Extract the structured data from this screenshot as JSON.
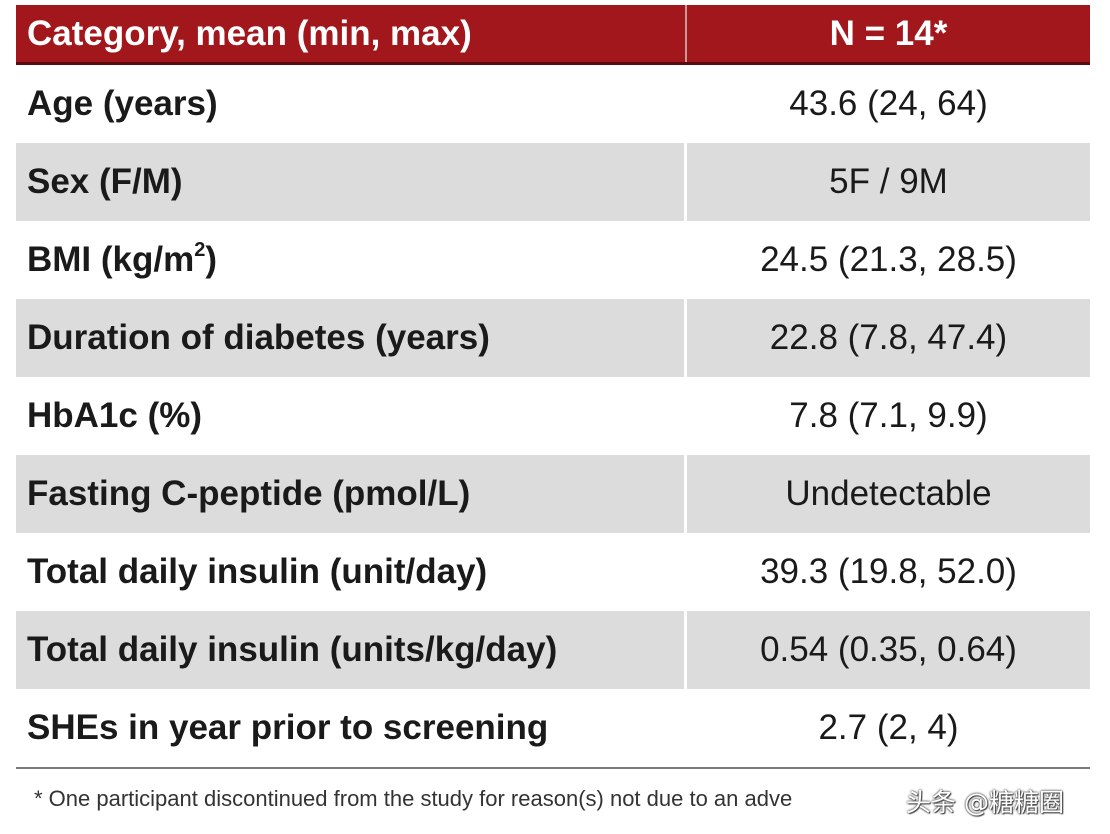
{
  "table": {
    "header": {
      "category": "Category, mean (min, max)",
      "value": "N = 14*"
    },
    "rows": [
      {
        "label": "Age (years)",
        "value": "43.6 (24, 64)"
      },
      {
        "label": "Sex (F/M)",
        "value": "5F / 9M"
      },
      {
        "label_prefix": "BMI (kg/m",
        "label_sup": "2",
        "label_suffix": ")",
        "value": "24.5 (21.3, 28.5)"
      },
      {
        "label": "Duration of diabetes (years)",
        "value": "22.8 (7.8, 47.4)"
      },
      {
        "label": "HbA1c (%)",
        "value": "7.8 (7.1, 9.9)"
      },
      {
        "label": "Fasting C-peptide (pmol/L)",
        "value": "Undetectable"
      },
      {
        "label": "Total daily insulin (unit/day)",
        "value": "39.3 (19.8, 52.0)"
      },
      {
        "label": "Total daily insulin (units/kg/day)",
        "value": "0.54 (0.35, 0.64)"
      },
      {
        "label": "SHEs in year prior to screening",
        "value": "2.7 (2, 4)"
      }
    ]
  },
  "footnote": "* One participant discontinued from the study for reason(s) not due to an adve",
  "watermark": "头条 @糖糖圈",
  "colors": {
    "header_bg": "#a1171b",
    "shaded_row_bg": "#dcdcdc"
  }
}
